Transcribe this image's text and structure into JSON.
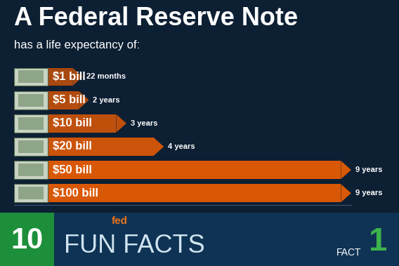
{
  "chart_data": {
    "type": "bar",
    "orientation": "horizontal",
    "title": "A Federal Reserve Note",
    "subtitle": "has a life expectancy of:",
    "categories": [
      "$1 bill",
      "$5 bill",
      "$10 bill",
      "$20 bill",
      "$50 bill",
      "$100 bill"
    ],
    "values": [
      22,
      24,
      36,
      48,
      108,
      108
    ],
    "value_labels": [
      "22 months",
      "2 years",
      "3 years",
      "4 years",
      "9 years",
      "9 years"
    ],
    "colors": [
      "#a9480f",
      "#b34c0e",
      "#bf500c",
      "#cc540a",
      "#d95806",
      "#d95806"
    ],
    "xlim": [
      0,
      108
    ],
    "data_labels": true,
    "tick_labels": false,
    "grid": false,
    "annotations": [
      "10",
      "fed",
      "FUN FACTS",
      "FACT",
      "1"
    ]
  }
}
